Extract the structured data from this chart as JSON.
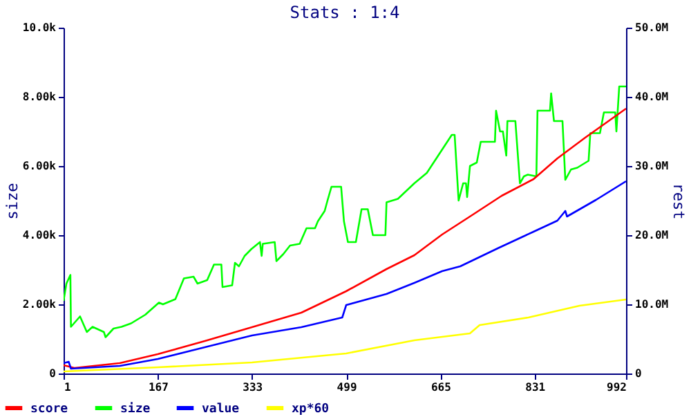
{
  "chart_data": {
    "type": "line",
    "title": "Stats : 1:4",
    "ylabel": "size",
    "y2label": "rest",
    "xlim": [
      1,
      992
    ],
    "xticks": [
      1,
      167,
      333,
      499,
      665,
      831,
      992
    ],
    "ylim": [
      0,
      10000
    ],
    "yticks": [
      0,
      {
        "value": 2000,
        "label": "2.00k"
      },
      {
        "value": 4000,
        "label": "4.00k"
      },
      {
        "value": 6000,
        "label": "6.00k"
      },
      {
        "value": 8000,
        "label": "8.00k"
      },
      {
        "value": 10000,
        "label": "10.0k"
      }
    ],
    "y2lim": [
      0,
      50000000
    ],
    "y2ticks": [
      0,
      {
        "value": 10000000,
        "label": "10.0M"
      },
      {
        "value": 20000000,
        "label": "20.0M"
      },
      {
        "value": 30000000,
        "label": "30.0M"
      },
      {
        "value": 40000000,
        "label": "40.0M"
      },
      {
        "value": 50000000,
        "label": "50.0M"
      }
    ],
    "grid": false,
    "legend": "bottom left",
    "marker": "none",
    "line_style": "solid",
    "series": [
      {
        "name": "score",
        "color": "#ff0000",
        "axis": "y2",
        "x": [
          1,
          20,
          100,
          167,
          250,
          333,
          420,
          499,
          570,
          619,
          668,
          717,
          773,
          829,
          871,
          920,
          992
        ],
        "values": [
          1200000,
          800000,
          1500000,
          2800000,
          4700000,
          6700000,
          8800000,
          11900000,
          15100000,
          17100000,
          20100000,
          22700000,
          25700000,
          28100000,
          31100000,
          34100000,
          38300000
        ]
      },
      {
        "name": "size",
        "color": "#00ff00",
        "x": [
          1,
          6,
          13,
          14,
          30,
          42,
          52,
          72,
          75,
          89,
          103,
          120,
          145,
          169,
          176,
          198,
          213,
          230,
          237,
          254,
          266,
          279,
          281,
          298,
          303,
          310,
          320,
          332,
          347,
          350,
          352,
          373,
          376,
          388,
          400,
          417,
          429,
          444,
          449,
          461,
          466,
          473,
          490,
          495,
          502,
          516,
          526,
          537,
          546,
          568,
          570,
          590,
          619,
          641,
          663,
          685,
          690,
          697,
          705,
          710,
          712,
          717,
          729,
          736,
          761,
          763,
          770,
          775,
          781,
          783,
          797,
          805,
          812,
          819,
          834,
          836,
          858,
          860,
          865,
          880,
          885,
          895,
          906,
          926,
          929,
          946,
          953,
          973,
          975,
          980,
          992
        ],
        "values": [
          2100,
          2600,
          2850,
          1350,
          1650,
          1200,
          1350,
          1200,
          1050,
          1300,
          1350,
          1450,
          1700,
          2050,
          2000,
          2150,
          2750,
          2800,
          2600,
          2700,
          3150,
          3150,
          2500,
          2550,
          3200,
          3100,
          3400,
          3600,
          3800,
          3400,
          3750,
          3800,
          3250,
          3450,
          3700,
          3750,
          4200,
          4200,
          4400,
          4700,
          5000,
          5400,
          5400,
          4400,
          3800,
          3800,
          4750,
          4750,
          4000,
          4000,
          4950,
          5050,
          5500,
          5800,
          6350,
          6900,
          6900,
          5000,
          5500,
          5500,
          5100,
          6000,
          6100,
          6700,
          6700,
          7600,
          7000,
          7000,
          6300,
          7300,
          7300,
          5500,
          5700,
          5750,
          5700,
          7600,
          7600,
          8100,
          7300,
          7300,
          5600,
          5900,
          5950,
          6150,
          6950,
          6950,
          7550,
          7550,
          7000,
          8300,
          8300
        ]
      },
      {
        "name": "value",
        "color": "#0000ff",
        "axis": "y2",
        "x": [
          1,
          10,
          14,
          100,
          167,
          250,
          333,
          420,
          492,
          499,
          570,
          619,
          668,
          700,
          766,
          829,
          871,
          885,
          888,
          939,
          992
        ],
        "values": [
          1500000,
          1700000,
          700000,
          1100000,
          2100000,
          3800000,
          5500000,
          6700000,
          8100000,
          9900000,
          11500000,
          13100000,
          14800000,
          15500000,
          18100000,
          20500000,
          22100000,
          23500000,
          22700000,
          25100000,
          27800000
        ]
      },
      {
        "name": "xp*60",
        "color": "#ffff00",
        "axis": "y2",
        "x": [
          1,
          167,
          333,
          499,
          619,
          717,
          734,
          820,
          910,
          992
        ],
        "values": [
          300000,
          900000,
          1600000,
          2900000,
          4800000,
          5800000,
          7000000,
          8100000,
          9800000,
          10700000
        ]
      }
    ]
  }
}
